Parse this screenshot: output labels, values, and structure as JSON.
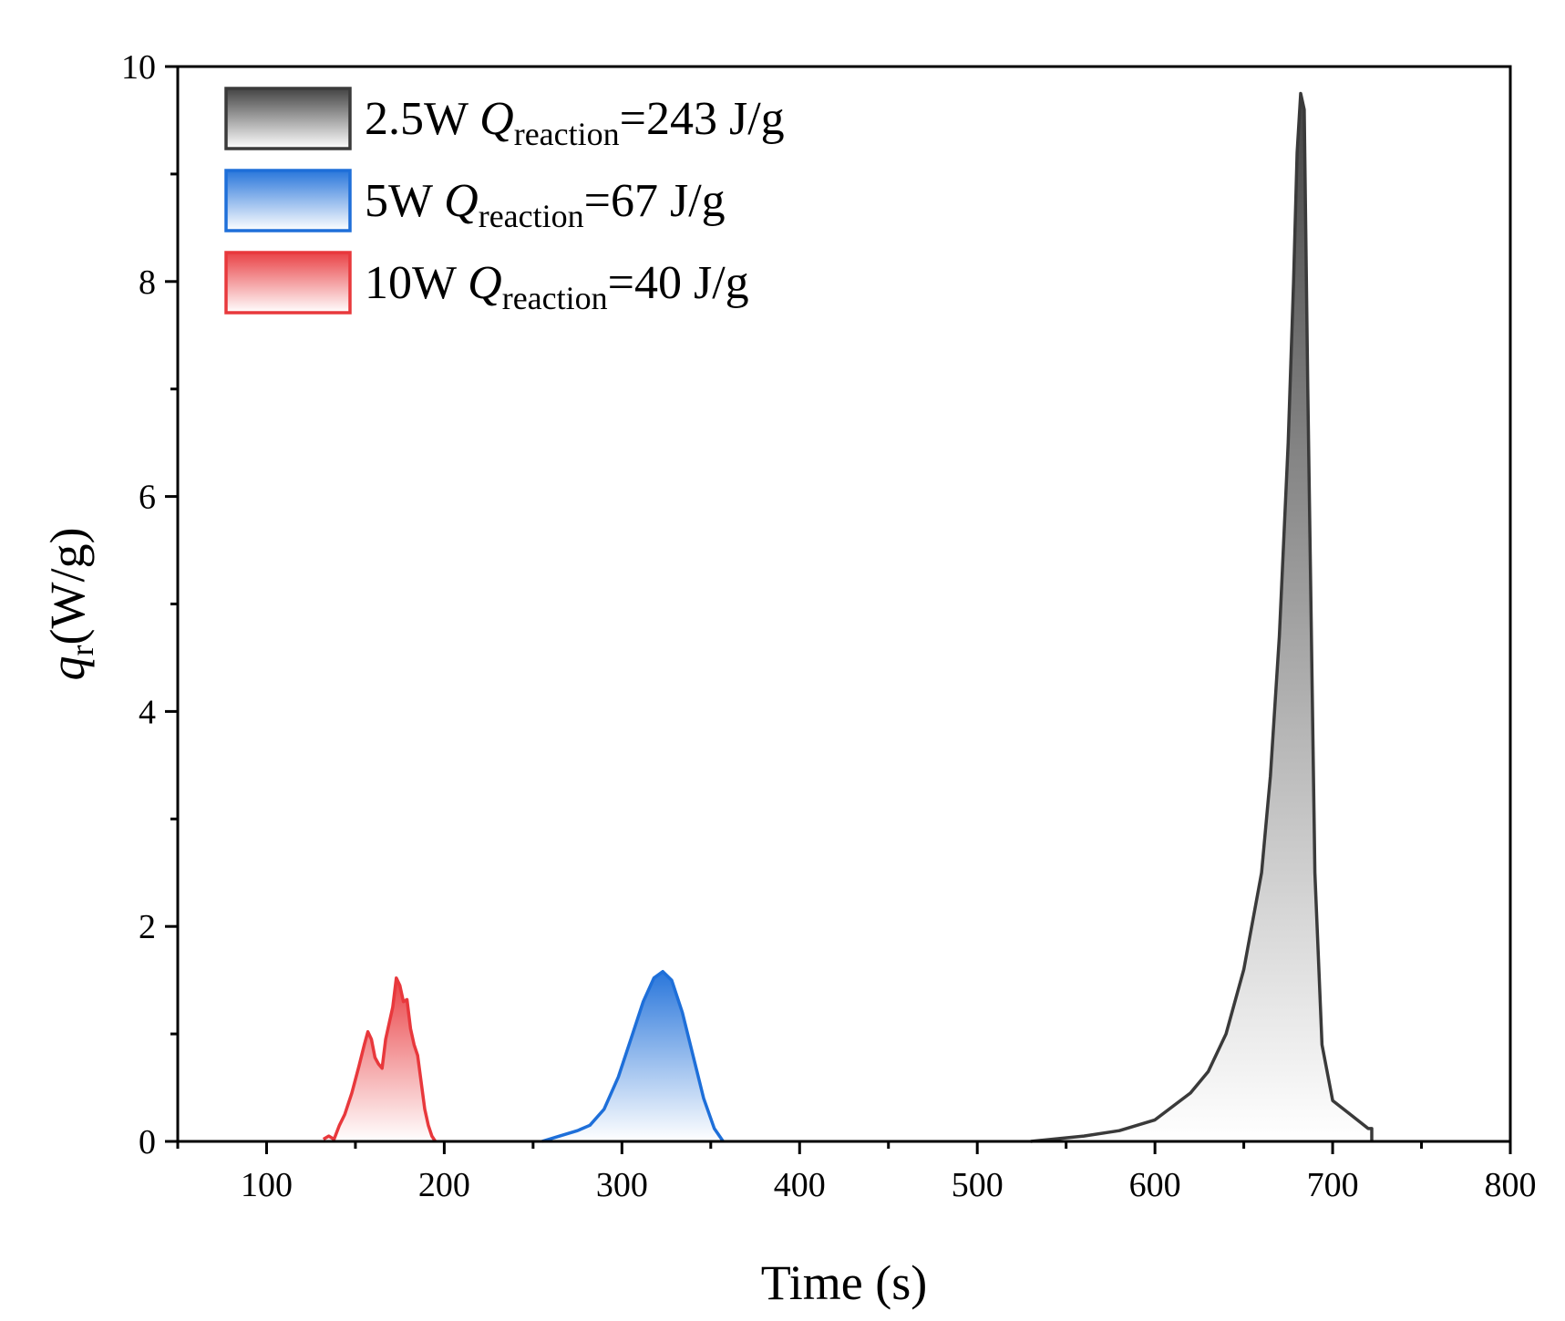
{
  "chart_data": {
    "type": "area",
    "xlabel": "Time (s)",
    "ylabel": {
      "main": "q",
      "sub": "r",
      "rest": "(W/g)"
    },
    "xlim": [
      50,
      800
    ],
    "ylim": [
      0,
      10
    ],
    "x_ticks": [
      100,
      200,
      300,
      400,
      500,
      600,
      700,
      800
    ],
    "y_ticks": [
      0,
      2,
      4,
      6,
      8,
      10
    ],
    "x_tick_labels": [
      "100",
      "200",
      "300",
      "400",
      "500",
      "600",
      "700",
      "800"
    ],
    "y_tick_labels": [
      "0",
      "2",
      "4",
      "6",
      "8",
      "10"
    ],
    "grid": false,
    "legend_position": "top-left",
    "series": [
      {
        "name": {
          "prefix": "2.5W ",
          "q": "Q",
          "sub": "reaction",
          "suffix": "=243 J/g"
        },
        "color": "#3a3a3a",
        "x": [
          530,
          560,
          580,
          600,
          620,
          630,
          640,
          650,
          660,
          665,
          670,
          675,
          678,
          680,
          682,
          684,
          686,
          690,
          694,
          700,
          710,
          720,
          722,
          722
        ],
        "y": [
          0.0,
          0.05,
          0.1,
          0.2,
          0.45,
          0.65,
          1.0,
          1.6,
          2.5,
          3.4,
          4.7,
          6.5,
          8.0,
          9.2,
          9.75,
          9.6,
          7.0,
          2.5,
          0.9,
          0.38,
          0.25,
          0.12,
          0.12,
          0.0
        ]
      },
      {
        "name": {
          "prefix": "5W ",
          "q": "Q",
          "sub": "reaction",
          "suffix": "=67 J/g"
        },
        "color": "#1e6fd9",
        "x": [
          255,
          265,
          275,
          282,
          290,
          298,
          305,
          312,
          318,
          323,
          328,
          334,
          340,
          346,
          352,
          357
        ],
        "y": [
          0.0,
          0.05,
          0.1,
          0.15,
          0.3,
          0.6,
          0.95,
          1.3,
          1.52,
          1.58,
          1.5,
          1.2,
          0.8,
          0.4,
          0.12,
          0.0
        ]
      },
      {
        "name": {
          "prefix": "10W ",
          "q": "Q",
          "sub": "reaction",
          "suffix": "=40 J/g"
        },
        "color": "#e8383c",
        "x": [
          132,
          135,
          138,
          141,
          144,
          148,
          152,
          155,
          157,
          159,
          161,
          163,
          165,
          167,
          169,
          171,
          173,
          175,
          177,
          179,
          181,
          183,
          185,
          187,
          189,
          191,
          193,
          195
        ],
        "y": [
          0.02,
          0.05,
          0.02,
          0.15,
          0.25,
          0.45,
          0.7,
          0.9,
          1.02,
          0.95,
          0.78,
          0.72,
          0.68,
          0.95,
          1.1,
          1.25,
          1.52,
          1.45,
          1.3,
          1.32,
          1.05,
          0.9,
          0.8,
          0.55,
          0.3,
          0.15,
          0.05,
          0.0
        ]
      }
    ]
  }
}
